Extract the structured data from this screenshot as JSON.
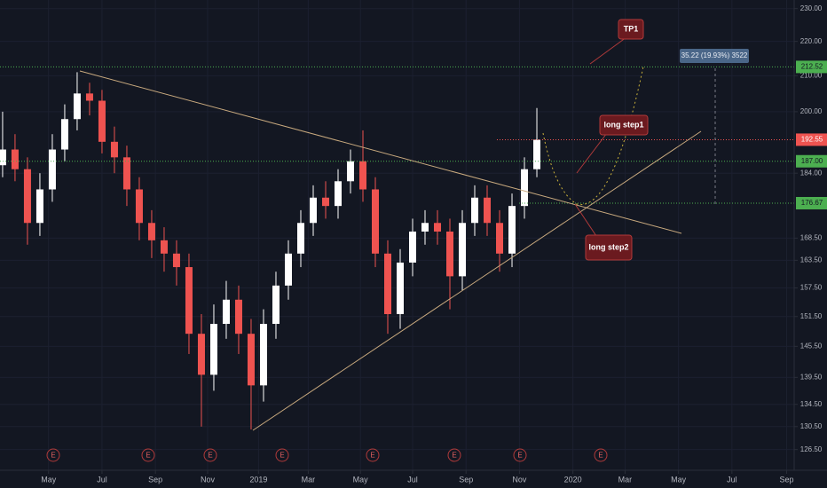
{
  "chart_data": {
    "type": "candlestick",
    "log_scale": true,
    "grid": true,
    "up_color": "#ffffff",
    "down_color": "#ef5350",
    "open": [
      186,
      190,
      185,
      172,
      180,
      190,
      198,
      205,
      203,
      192,
      188,
      180,
      172,
      168,
      165,
      162,
      148,
      140,
      150,
      155,
      148,
      138,
      150,
      158,
      165,
      172,
      178,
      176,
      182,
      187,
      180,
      165,
      152,
      163,
      170,
      172,
      170,
      160,
      172,
      178,
      172,
      165,
      176,
      185
    ],
    "high": [
      200,
      194,
      188,
      184,
      194,
      202,
      211,
      208,
      206,
      196,
      191,
      183,
      175,
      171,
      168,
      165,
      152,
      154,
      159,
      158,
      151,
      153,
      161,
      168,
      175,
      181,
      182,
      185,
      190,
      195,
      183,
      168,
      166,
      173,
      175,
      175,
      173,
      175,
      181,
      181,
      175,
      179,
      188,
      201
    ],
    "low": [
      183,
      182,
      167,
      169,
      177,
      187,
      195,
      199,
      189,
      184,
      176,
      168,
      164,
      161,
      158,
      144,
      130.5,
      137,
      147,
      144,
      130,
      135,
      147,
      155,
      162,
      169,
      173,
      173,
      179,
      177,
      162,
      148,
      149,
      160,
      167,
      167,
      153,
      157,
      169,
      169,
      161,
      162,
      173,
      183
    ],
    "close": [
      190,
      185,
      172,
      180,
      190,
      198,
      205,
      203,
      192,
      188,
      180,
      172,
      168,
      165,
      162,
      148,
      140,
      150,
      155,
      148,
      138,
      150,
      158,
      165,
      172,
      178,
      176,
      182,
      187,
      180,
      165,
      152,
      163,
      170,
      172,
      170,
      160,
      172,
      178,
      172,
      165,
      176,
      185,
      192.55
    ],
    "xlim": [
      -0.21,
      63.71
    ],
    "xticks": [
      {
        "value": 3.7,
        "label": "May"
      },
      {
        "value": 8.0,
        "label": "Jul"
      },
      {
        "value": 12.3,
        "label": "Sep"
      },
      {
        "value": 16.5,
        "label": "Nov"
      },
      {
        "value": 20.6,
        "label": "2019"
      },
      {
        "value": 24.6,
        "label": "Mar"
      },
      {
        "value": 28.8,
        "label": "May"
      },
      {
        "value": 33.0,
        "label": "Jul"
      },
      {
        "value": 37.3,
        "label": "Sep"
      },
      {
        "value": 41.6,
        "label": "Nov"
      },
      {
        "value": 45.9,
        "label": "2020"
      },
      {
        "value": 50.1,
        "label": "Mar"
      },
      {
        "value": 54.4,
        "label": "May"
      },
      {
        "value": 58.7,
        "label": "Jul"
      },
      {
        "value": 63.1,
        "label": "Sep"
      }
    ],
    "ylim": [
      123,
      232.7
    ],
    "yticks": [
      {
        "value": 230,
        "label": "230.00"
      },
      {
        "value": 220,
        "label": "220.00"
      },
      {
        "value": 210,
        "label": "210.00"
      },
      {
        "value": 200,
        "label": "200.00"
      },
      {
        "value": 184,
        "label": "184.00"
      },
      {
        "value": 168.5,
        "label": "168.50"
      },
      {
        "value": 163.5,
        "label": "163.50"
      },
      {
        "value": 157.5,
        "label": "157.50"
      },
      {
        "value": 151.5,
        "label": "151.50"
      },
      {
        "value": 145.5,
        "label": "145.50"
      },
      {
        "value": 139.5,
        "label": "139.50"
      },
      {
        "value": 134.5,
        "label": "134.50"
      },
      {
        "value": 130.5,
        "label": "130.50"
      },
      {
        "value": 126.5,
        "label": "126.50"
      }
    ],
    "price_lines": [
      {
        "value": 212.52,
        "label": "212.52",
        "color": "#4caf50"
      },
      {
        "value": 192.55,
        "label": "192.55",
        "color": "#ef5350"
      },
      {
        "value": 187,
        "label": "187.00",
        "color": "#4caf50"
      },
      {
        "value": 176.67,
        "label": "176.67",
        "color": "#4caf50"
      }
    ],
    "annotations": [
      "TP1",
      "long step1",
      "long step2"
    ],
    "measure_label": "35.22 (19.93%) 3522",
    "earnings_markers": [
      "E",
      "E",
      "E",
      "E",
      "E",
      "E",
      "E",
      "E"
    ]
  }
}
